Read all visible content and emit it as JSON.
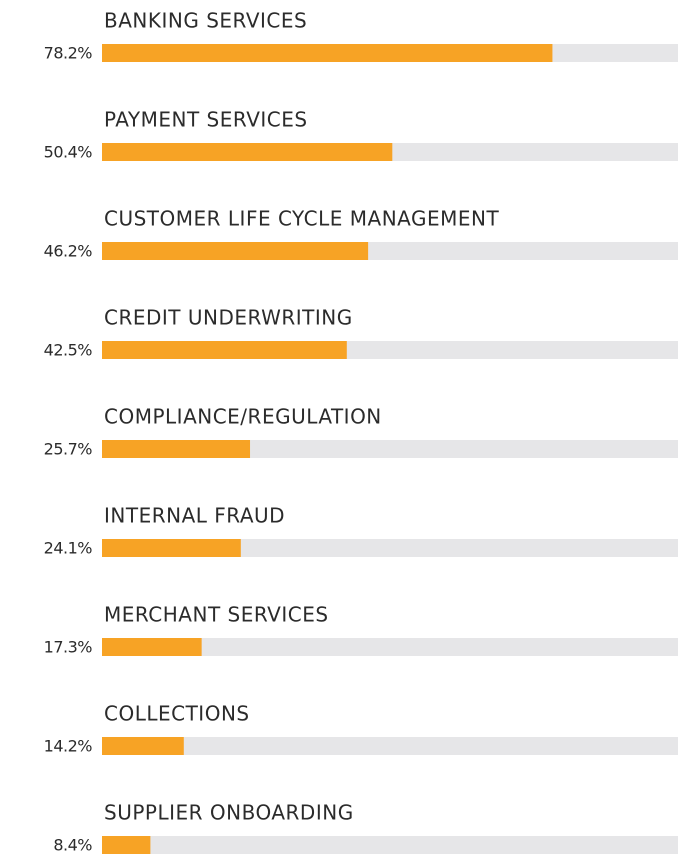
{
  "chart_data": {
    "type": "bar",
    "orientation": "horizontal",
    "categories": [
      "BANKING SERVICES",
      "PAYMENT SERVICES",
      "CUSTOMER LIFE CYCLE MANAGEMENT",
      "CREDIT UNDERWRITING",
      "COMPLIANCE/REGULATION",
      "INTERNAL FRAUD",
      "MERCHANT SERVICES",
      "COLLECTIONS",
      "SUPPLIER ONBOARDING"
    ],
    "values": [
      78.2,
      50.4,
      46.2,
      42.5,
      25.7,
      24.1,
      17.3,
      14.2,
      8.4
    ],
    "value_labels": [
      "78.2%",
      "50.4%",
      "46.2%",
      "42.5%",
      "25.7%",
      "24.1%",
      "17.3%",
      "14.2%",
      "8.4%"
    ],
    "color": "#f7a325",
    "track_color": "#e6e6e8",
    "xlim": [
      0,
      100
    ]
  }
}
